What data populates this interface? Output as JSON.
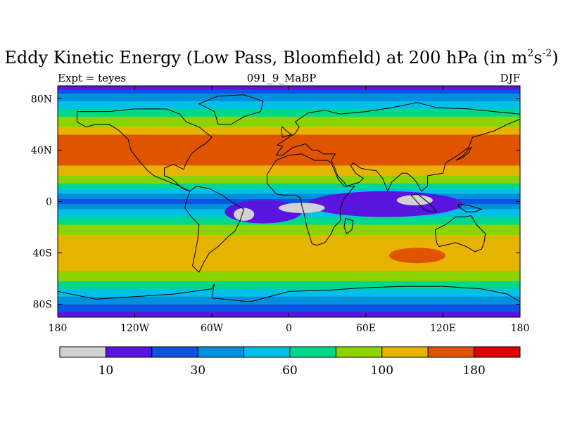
{
  "title": {
    "main": "Eddy Kinetic Energy (Low Pass, Bloomfield) at 200 hPa (in m",
    "sup1": "2",
    "mid": "s",
    "sup2": "-2",
    "end": ")"
  },
  "subtitle": {
    "left": "Expt = teyes",
    "center": "091_9_MaBP",
    "right": "DJF"
  },
  "map": {
    "lon_range": [
      -180,
      180
    ],
    "lat_range": [
      -90,
      90
    ],
    "x_ticks": [
      {
        "lon": -180,
        "label": "180"
      },
      {
        "lon": -120,
        "label": "120W"
      },
      {
        "lon": -60,
        "label": "60W"
      },
      {
        "lon": 0,
        "label": "0"
      },
      {
        "lon": 60,
        "label": "60E"
      },
      {
        "lon": 120,
        "label": "120E"
      },
      {
        "lon": 180,
        "label": "180"
      }
    ],
    "y_ticks": [
      {
        "lat": 80,
        "label": "80N"
      },
      {
        "lat": 40,
        "label": "40N"
      },
      {
        "lat": 0,
        "label": "0"
      },
      {
        "lat": -40,
        "label": "40S"
      },
      {
        "lat": -80,
        "label": "80S"
      }
    ],
    "bands": [
      {
        "from": 90,
        "to": 87,
        "color": "#5a14e0"
      },
      {
        "from": 87,
        "to": 84,
        "color": "#0c55e0"
      },
      {
        "from": 84,
        "to": 78,
        "color": "#0090dc"
      },
      {
        "from": 78,
        "to": 72,
        "color": "#00c0e8"
      },
      {
        "from": 72,
        "to": 66,
        "color": "#00d88c"
      },
      {
        "from": 66,
        "to": 58,
        "color": "#8cd400"
      },
      {
        "from": 58,
        "to": 52,
        "color": "#e6b400"
      },
      {
        "from": 52,
        "to": 28,
        "color": "#e05400"
      },
      {
        "from": 28,
        "to": 20,
        "color": "#e6b400"
      },
      {
        "from": 20,
        "to": 14,
        "color": "#8cd400"
      },
      {
        "from": 14,
        "to": 10,
        "color": "#00d88c"
      },
      {
        "from": 10,
        "to": 6,
        "color": "#00c0e8"
      },
      {
        "from": 6,
        "to": 2,
        "color": "#0090dc"
      },
      {
        "from": 2,
        "to": -2,
        "color": "#0c55e0"
      },
      {
        "from": -2,
        "to": -6,
        "color": "#0090dc"
      },
      {
        "from": -6,
        "to": -12,
        "color": "#00c0e8"
      },
      {
        "from": -12,
        "to": -18,
        "color": "#00d88c"
      },
      {
        "from": -18,
        "to": -26,
        "color": "#8cd400"
      },
      {
        "from": -26,
        "to": -54,
        "color": "#e6b400"
      },
      {
        "from": -54,
        "to": -62,
        "color": "#8cd400"
      },
      {
        "from": -62,
        "to": -68,
        "color": "#00d88c"
      },
      {
        "from": -68,
        "to": -74,
        "color": "#00c0e8"
      },
      {
        "from": -74,
        "to": -80,
        "color": "#0090dc"
      },
      {
        "from": -80,
        "to": -86,
        "color": "#0c55e0"
      },
      {
        "from": -86,
        "to": -90,
        "color": "#5a14e0"
      }
    ],
    "blobs": [
      {
        "lon": -20,
        "lat": -8,
        "rx": 30,
        "ry": 9,
        "color": "#5a14e0"
      },
      {
        "lon": 75,
        "lat": -2,
        "rx": 60,
        "ry": 10,
        "color": "#5a14e0"
      },
      {
        "lon": -35,
        "lat": -10,
        "rx": 8,
        "ry": 5,
        "color": "#d2d2d2"
      },
      {
        "lon": 10,
        "lat": -5,
        "rx": 18,
        "ry": 4,
        "color": "#d2d2d2"
      },
      {
        "lon": 98,
        "lat": 1,
        "rx": 14,
        "ry": 4,
        "color": "#d2d2d2"
      },
      {
        "lon": 100,
        "lat": -42,
        "rx": 22,
        "ry": 6,
        "color": "#e05400"
      },
      {
        "lon": 60,
        "lat": 42,
        "rx": 40,
        "ry": 7,
        "color": "#e05400"
      }
    ],
    "coastlines": [
      [
        [
          -165,
          70
        ],
        [
          -140,
          70
        ],
        [
          -120,
          72
        ],
        [
          -95,
          72
        ],
        [
          -85,
          68
        ],
        [
          -80,
          62
        ],
        [
          -70,
          58
        ],
        [
          -60,
          50
        ],
        [
          -65,
          45
        ],
        [
          -70,
          42
        ],
        [
          -76,
          37
        ],
        [
          -80,
          30
        ],
        [
          -82,
          25
        ],
        [
          -90,
          29
        ],
        [
          -97,
          26
        ],
        [
          -97,
          20
        ],
        [
          -92,
          18
        ],
        [
          -88,
          15
        ],
        [
          -83,
          10
        ],
        [
          -77,
          8
        ],
        [
          -85,
          12
        ],
        [
          -95,
          16
        ],
        [
          -105,
          20
        ],
        [
          -110,
          24
        ],
        [
          -117,
          32
        ],
        [
          -123,
          40
        ],
        [
          -125,
          48
        ],
        [
          -132,
          55
        ],
        [
          -140,
          60
        ],
        [
          -150,
          60
        ],
        [
          -158,
          58
        ],
        [
          -165,
          62
        ],
        [
          -165,
          70
        ]
      ],
      [
        [
          -77,
          8
        ],
        [
          -72,
          12
        ],
        [
          -62,
          10
        ],
        [
          -52,
          5
        ],
        [
          -45,
          0
        ],
        [
          -35,
          -6
        ],
        [
          -38,
          -15
        ],
        [
          -42,
          -23
        ],
        [
          -48,
          -28
        ],
        [
          -55,
          -35
        ],
        [
          -62,
          -40
        ],
        [
          -66,
          -47
        ],
        [
          -70,
          -55
        ],
        [
          -75,
          -50
        ],
        [
          -73,
          -40
        ],
        [
          -71,
          -30
        ],
        [
          -70,
          -18
        ],
        [
          -76,
          -12
        ],
        [
          -81,
          -5
        ],
        [
          -80,
          0
        ],
        [
          -77,
          8
        ]
      ],
      [
        [
          -55,
          60
        ],
        [
          -45,
          60
        ],
        [
          -35,
          66
        ],
        [
          -22,
          70
        ],
        [
          -20,
          78
        ],
        [
          -35,
          83
        ],
        [
          -55,
          82
        ],
        [
          -65,
          78
        ],
        [
          -70,
          76
        ],
        [
          -58,
          70
        ],
        [
          -55,
          60
        ]
      ],
      [
        [
          -10,
          36
        ],
        [
          -5,
          43
        ],
        [
          -9,
          44
        ],
        [
          0,
          50
        ],
        [
          5,
          53
        ],
        [
          8,
          58
        ],
        [
          5,
          62
        ],
        [
          15,
          69
        ],
        [
          28,
          71
        ],
        [
          40,
          68
        ],
        [
          60,
          70
        ],
        [
          80,
          73
        ],
        [
          100,
          77
        ],
        [
          115,
          73
        ],
        [
          140,
          72
        ],
        [
          160,
          70
        ],
        [
          180,
          68
        ],
        [
          180,
          64
        ],
        [
          170,
          60
        ],
        [
          160,
          55
        ],
        [
          143,
          50
        ],
        [
          140,
          42
        ],
        [
          130,
          35
        ],
        [
          122,
          30
        ],
        [
          120,
          22
        ],
        [
          108,
          20
        ],
        [
          108,
          12
        ],
        [
          103,
          8
        ],
        [
          100,
          14
        ],
        [
          97,
          18
        ],
        [
          92,
          22
        ],
        [
          88,
          22
        ],
        [
          80,
          15
        ],
        [
          77,
          8
        ],
        [
          73,
          18
        ],
        [
          68,
          24
        ],
        [
          60,
          25
        ],
        [
          56,
          26
        ],
        [
          50,
          30
        ],
        [
          48,
          28
        ],
        [
          52,
          22
        ],
        [
          58,
          18
        ],
        [
          55,
          15
        ],
        [
          45,
          12
        ],
        [
          43,
          15
        ],
        [
          38,
          20
        ],
        [
          35,
          28
        ],
        [
          33,
          32
        ],
        [
          36,
          37
        ],
        [
          27,
          37
        ],
        [
          22,
          40
        ],
        [
          18,
          40
        ],
        [
          13,
          45
        ],
        [
          10,
          44
        ],
        [
          3,
          42
        ],
        [
          -5,
          36
        ],
        [
          -10,
          36
        ]
      ],
      [
        [
          -17,
          21
        ],
        [
          -17,
          14
        ],
        [
          -10,
          6
        ],
        [
          -5,
          5
        ],
        [
          5,
          5
        ],
        [
          9,
          3
        ],
        [
          10,
          -3
        ],
        [
          12,
          -10
        ],
        [
          14,
          -20
        ],
        [
          18,
          -33
        ],
        [
          22,
          -34
        ],
        [
          28,
          -32
        ],
        [
          33,
          -25
        ],
        [
          35,
          -20
        ],
        [
          40,
          -15
        ],
        [
          40,
          -5
        ],
        [
          43,
          2
        ],
        [
          51,
          12
        ],
        [
          43,
          12
        ],
        [
          38,
          18
        ],
        [
          33,
          30
        ],
        [
          30,
          32
        ],
        [
          20,
          32
        ],
        [
          10,
          37
        ],
        [
          0,
          36
        ],
        [
          -10,
          32
        ],
        [
          -17,
          21
        ]
      ],
      [
        [
          114,
          -22
        ],
        [
          122,
          -18
        ],
        [
          130,
          -12
        ],
        [
          137,
          -12
        ],
        [
          142,
          -11
        ],
        [
          146,
          -18
        ],
        [
          153,
          -25
        ],
        [
          152,
          -32
        ],
        [
          150,
          -37
        ],
        [
          145,
          -39
        ],
        [
          138,
          -35
        ],
        [
          130,
          -32
        ],
        [
          117,
          -35
        ],
        [
          115,
          -32
        ],
        [
          114,
          -22
        ]
      ],
      [
        [
          44,
          -13
        ],
        [
          50,
          -15
        ],
        [
          49,
          -22
        ],
        [
          45,
          -25
        ],
        [
          43,
          -20
        ],
        [
          44,
          -13
        ]
      ],
      [
        [
          130,
          32
        ],
        [
          135,
          34
        ],
        [
          140,
          38
        ],
        [
          142,
          42
        ],
        [
          140,
          41
        ],
        [
          136,
          36
        ],
        [
          130,
          32
        ]
      ],
      [
        [
          -5,
          50
        ],
        [
          2,
          52
        ],
        [
          -2,
          55
        ],
        [
          -5,
          58
        ],
        [
          -6,
          56
        ],
        [
          -5,
          50
        ]
      ],
      [
        [
          -180,
          -70
        ],
        [
          -150,
          -76
        ],
        [
          -120,
          -74
        ],
        [
          -90,
          -72
        ],
        [
          -60,
          -68
        ],
        [
          -58,
          -64
        ],
        [
          -60,
          -75
        ],
        [
          -30,
          -78
        ],
        [
          0,
          -70
        ],
        [
          30,
          -69
        ],
        [
          60,
          -67
        ],
        [
          90,
          -66
        ],
        [
          120,
          -66
        ],
        [
          150,
          -68
        ],
        [
          170,
          -72
        ],
        [
          180,
          -78
        ]
      ],
      [
        [
          95,
          5
        ],
        [
          105,
          -6
        ],
        [
          110,
          -8
        ],
        [
          115,
          -8
        ],
        [
          110,
          -2
        ],
        [
          105,
          2
        ],
        [
          100,
          6
        ],
        [
          95,
          5
        ]
      ],
      [
        [
          132,
          -2
        ],
        [
          140,
          -3
        ],
        [
          150,
          -6
        ],
        [
          145,
          -8
        ],
        [
          138,
          -8
        ],
        [
          132,
          -4
        ],
        [
          132,
          -2
        ]
      ]
    ]
  },
  "colorbar": {
    "colors": [
      "#d2d2d2",
      "#5a14e0",
      "#0c55e0",
      "#0090dc",
      "#00c0e8",
      "#00d88c",
      "#8cd400",
      "#e6b400",
      "#e05400",
      "#e00000"
    ],
    "labels": [
      {
        "index": 1,
        "text": "10"
      },
      {
        "index": 3,
        "text": "30"
      },
      {
        "index": 5,
        "text": "60"
      },
      {
        "index": 7,
        "text": "100"
      },
      {
        "index": 9,
        "text": "180"
      }
    ]
  }
}
